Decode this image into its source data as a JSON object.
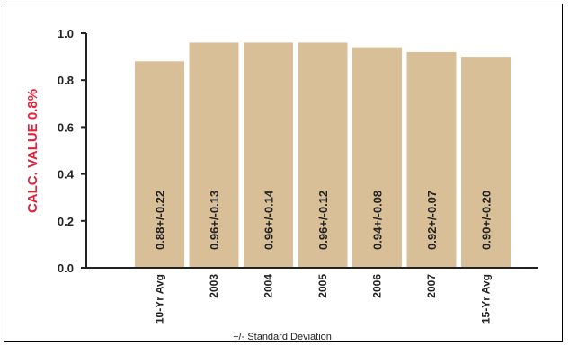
{
  "chart_data": {
    "type": "bar",
    "categories": [
      "10-Yr Avg",
      "2003",
      "2004",
      "2005",
      "2006",
      "2007",
      "15-Yr Avg"
    ],
    "values": [
      0.88,
      0.96,
      0.96,
      0.96,
      0.94,
      0.92,
      0.9
    ],
    "data_labels": [
      "0.88+/-0.22",
      "0.96+/-0.13",
      "0.96+/-0.14",
      "0.96+/-0.12",
      "0.94+/-0.08",
      "0.92+/-0.07",
      "0.90+/-0.20"
    ],
    "ylabel": "CALC. VALUE 0.8%",
    "xlabel": "+/- Standard Deviation",
    "yticks": [
      "0.0",
      "0.2",
      "0.4",
      "0.6",
      "0.8",
      "1.0"
    ],
    "ylim": [
      0,
      1.0
    ],
    "grid": false,
    "colors": {
      "bar": "#d9bf98",
      "axis": "#222222",
      "ylabel": "#e4203a"
    }
  }
}
